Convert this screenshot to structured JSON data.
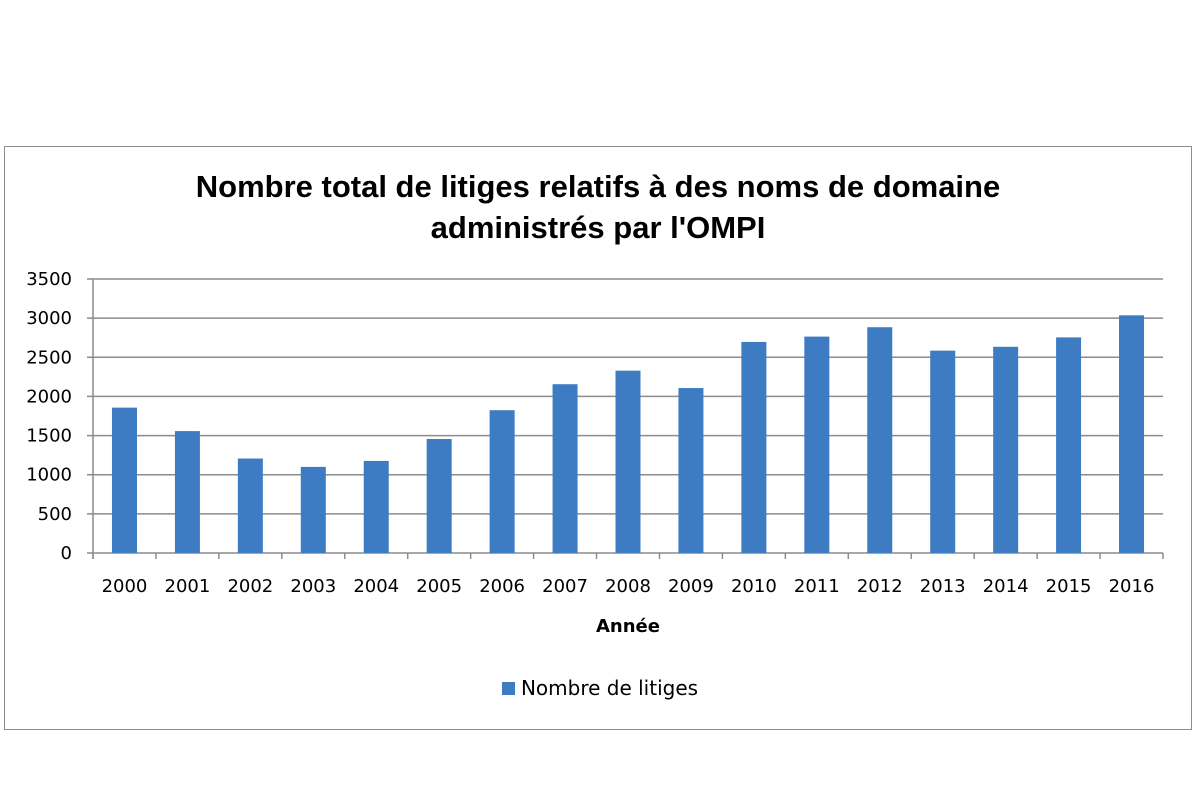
{
  "chart_data": {
    "type": "bar",
    "title": "Nombre total de litiges relatifs à des noms de domaine administrés par l'OMPI",
    "title_lines": [
      "Nombre total de litiges relatifs à des noms de domaine",
      "administrés par l'OMPI"
    ],
    "xlabel": "Année",
    "ylabel": "",
    "categories": [
      "2000",
      "2001",
      "2002",
      "2003",
      "2004",
      "2005",
      "2006",
      "2007",
      "2008",
      "2009",
      "2010",
      "2011",
      "2012",
      "2013",
      "2014",
      "2015",
      "2016"
    ],
    "series": [
      {
        "name": "Nombre de litiges",
        "color": "#3d7cc2",
        "values": [
          1857,
          1557,
          1207,
          1100,
          1176,
          1456,
          1824,
          2156,
          2329,
          2107,
          2696,
          2764,
          2884,
          2585,
          2634,
          2754,
          3036
        ]
      }
    ],
    "ylim": [
      0,
      3500
    ],
    "yticks": [
      0,
      500,
      1000,
      1500,
      2000,
      2500,
      3000,
      3500
    ],
    "grid": true,
    "legend_position": "bottom"
  }
}
